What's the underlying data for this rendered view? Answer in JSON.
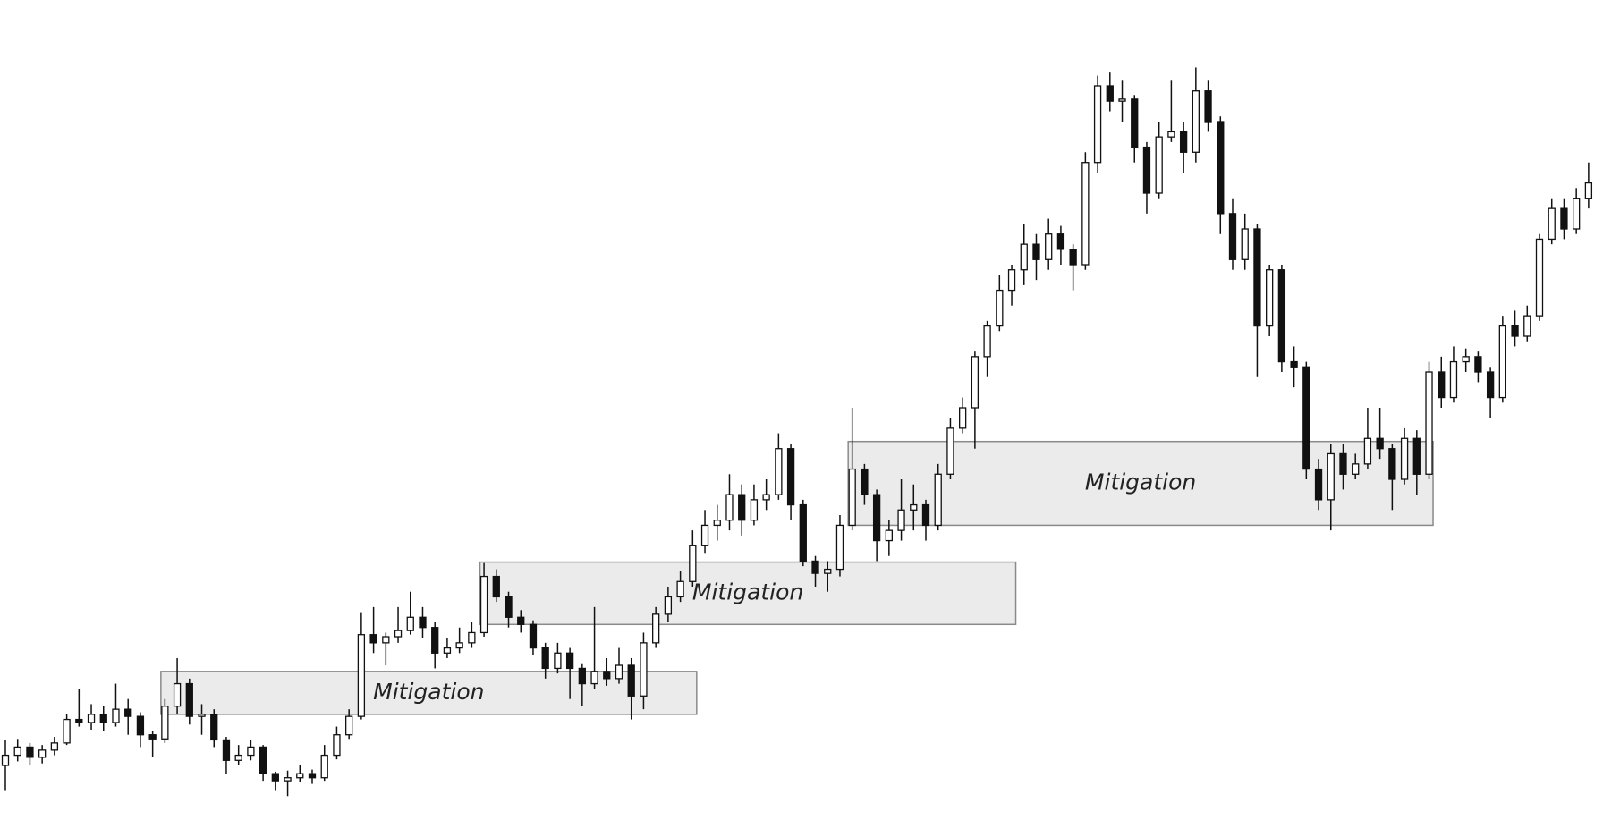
{
  "chart_data": {
    "type": "candlestick",
    "ylim": [
      0,
      819
    ],
    "up_color": "#ffffff",
    "down_color": "#111111",
    "edge_color": "#111111",
    "zone_color": "#ebebeb",
    "zone_edge_color": "#8a8a8a",
    "ohlc": [
      [
        70,
        95,
        45,
        80
      ],
      [
        80,
        96,
        74,
        88
      ],
      [
        88,
        92,
        70,
        78
      ],
      [
        78,
        90,
        72,
        85
      ],
      [
        85,
        98,
        80,
        92
      ],
      [
        92,
        120,
        90,
        115
      ],
      [
        115,
        145,
        108,
        112
      ],
      [
        112,
        130,
        105,
        120
      ],
      [
        120,
        128,
        104,
        112
      ],
      [
        112,
        150,
        108,
        125
      ],
      [
        125,
        135,
        100,
        118
      ],
      [
        118,
        122,
        88,
        100
      ],
      [
        100,
        104,
        78,
        96
      ],
      [
        96,
        135,
        92,
        128
      ],
      [
        128,
        175,
        120,
        150
      ],
      [
        150,
        155,
        110,
        118
      ],
      [
        118,
        130,
        100,
        120
      ],
      [
        120,
        125,
        88,
        95
      ],
      [
        95,
        98,
        62,
        75
      ],
      [
        75,
        90,
        70,
        80
      ],
      [
        80,
        95,
        75,
        88
      ],
      [
        88,
        90,
        55,
        62
      ],
      [
        62,
        64,
        45,
        55
      ],
      [
        55,
        65,
        40,
        58
      ],
      [
        58,
        70,
        54,
        62
      ],
      [
        62,
        66,
        52,
        58
      ],
      [
        58,
        90,
        55,
        80
      ],
      [
        80,
        108,
        76,
        100
      ],
      [
        100,
        125,
        96,
        118
      ],
      [
        118,
        220,
        115,
        198
      ],
      [
        198,
        225,
        180,
        190
      ],
      [
        190,
        200,
        168,
        196
      ],
      [
        196,
        225,
        190,
        202
      ],
      [
        202,
        240,
        198,
        215
      ],
      [
        215,
        225,
        195,
        205
      ],
      [
        205,
        210,
        165,
        180
      ],
      [
        180,
        195,
        175,
        185
      ],
      [
        185,
        205,
        180,
        190
      ],
      [
        190,
        210,
        185,
        200
      ],
      [
        200,
        268,
        196,
        255
      ],
      [
        255,
        262,
        230,
        235
      ],
      [
        235,
        240,
        205,
        215
      ],
      [
        215,
        222,
        200,
        208
      ],
      [
        208,
        212,
        178,
        185
      ],
      [
        185,
        190,
        155,
        165
      ],
      [
        165,
        190,
        160,
        180
      ],
      [
        180,
        185,
        135,
        165
      ],
      [
        165,
        170,
        128,
        150
      ],
      [
        150,
        225,
        145,
        162
      ],
      [
        162,
        175,
        148,
        155
      ],
      [
        155,
        185,
        150,
        168
      ],
      [
        168,
        175,
        115,
        138
      ],
      [
        138,
        200,
        125,
        190
      ],
      [
        190,
        225,
        185,
        218
      ],
      [
        218,
        245,
        210,
        235
      ],
      [
        235,
        260,
        230,
        250
      ],
      [
        250,
        300,
        245,
        285
      ],
      [
        285,
        320,
        278,
        305
      ],
      [
        305,
        325,
        290,
        310
      ],
      [
        310,
        355,
        300,
        335
      ],
      [
        335,
        345,
        295,
        310
      ],
      [
        310,
        345,
        305,
        330
      ],
      [
        330,
        350,
        320,
        335
      ],
      [
        335,
        395,
        330,
        380
      ],
      [
        380,
        385,
        310,
        325
      ],
      [
        325,
        330,
        265,
        270
      ],
      [
        270,
        275,
        245,
        258
      ],
      [
        258,
        270,
        240,
        262
      ],
      [
        262,
        315,
        255,
        305
      ],
      [
        305,
        420,
        300,
        360
      ],
      [
        360,
        365,
        325,
        335
      ],
      [
        335,
        340,
        270,
        290
      ],
      [
        290,
        310,
        275,
        300
      ],
      [
        300,
        350,
        290,
        320
      ],
      [
        320,
        345,
        300,
        325
      ],
      [
        325,
        330,
        290,
        305
      ],
      [
        305,
        365,
        300,
        355
      ],
      [
        355,
        410,
        350,
        400
      ],
      [
        400,
        430,
        395,
        420
      ],
      [
        420,
        475,
        380,
        470
      ],
      [
        470,
        505,
        450,
        500
      ],
      [
        500,
        550,
        495,
        535
      ],
      [
        535,
        560,
        520,
        555
      ],
      [
        555,
        600,
        540,
        580
      ],
      [
        580,
        590,
        545,
        565
      ],
      [
        565,
        605,
        555,
        590
      ],
      [
        590,
        598,
        560,
        575
      ],
      [
        575,
        580,
        535,
        560
      ],
      [
        560,
        670,
        555,
        660
      ],
      [
        660,
        745,
        650,
        735
      ],
      [
        735,
        748,
        710,
        720
      ],
      [
        720,
        740,
        700,
        722
      ],
      [
        722,
        726,
        660,
        675
      ],
      [
        675,
        680,
        610,
        630
      ],
      [
        630,
        700,
        625,
        685
      ],
      [
        685,
        740,
        680,
        690
      ],
      [
        690,
        700,
        650,
        670
      ],
      [
        670,
        753,
        660,
        730
      ],
      [
        730,
        740,
        690,
        700
      ],
      [
        700,
        705,
        590,
        610
      ],
      [
        610,
        625,
        555,
        565
      ],
      [
        565,
        610,
        555,
        595
      ],
      [
        595,
        600,
        450,
        500
      ],
      [
        500,
        560,
        490,
        555
      ],
      [
        555,
        560,
        455,
        465
      ],
      [
        465,
        480,
        440,
        460
      ],
      [
        460,
        465,
        350,
        360
      ],
      [
        360,
        370,
        320,
        330
      ],
      [
        330,
        385,
        300,
        375
      ],
      [
        375,
        385,
        340,
        355
      ],
      [
        355,
        375,
        350,
        365
      ],
      [
        365,
        420,
        360,
        390
      ],
      [
        390,
        420,
        370,
        380
      ],
      [
        380,
        385,
        320,
        350
      ],
      [
        350,
        400,
        345,
        390
      ],
      [
        390,
        398,
        335,
        355
      ],
      [
        355,
        465,
        350,
        455
      ],
      [
        455,
        470,
        420,
        430
      ],
      [
        430,
        480,
        425,
        465
      ],
      [
        465,
        478,
        455,
        470
      ],
      [
        470,
        475,
        445,
        455
      ],
      [
        455,
        460,
        410,
        430
      ],
      [
        430,
        510,
        425,
        500
      ],
      [
        500,
        515,
        480,
        490
      ],
      [
        490,
        520,
        485,
        510
      ],
      [
        510,
        590,
        505,
        585
      ],
      [
        585,
        625,
        580,
        615
      ],
      [
        615,
        625,
        585,
        595
      ],
      [
        595,
        635,
        590,
        625
      ],
      [
        625,
        660,
        615,
        640
      ]
    ],
    "zones": [
      {
        "label": "Mitigation",
        "from": 13,
        "to": 56,
        "top": 162,
        "bottom": 120
      },
      {
        "label": "Mitigation",
        "from": 39,
        "to": 82,
        "top": 269,
        "bottom": 208
      },
      {
        "label": "Mitigation",
        "from": 69,
        "to": 116,
        "top": 387,
        "bottom": 305
      }
    ]
  }
}
